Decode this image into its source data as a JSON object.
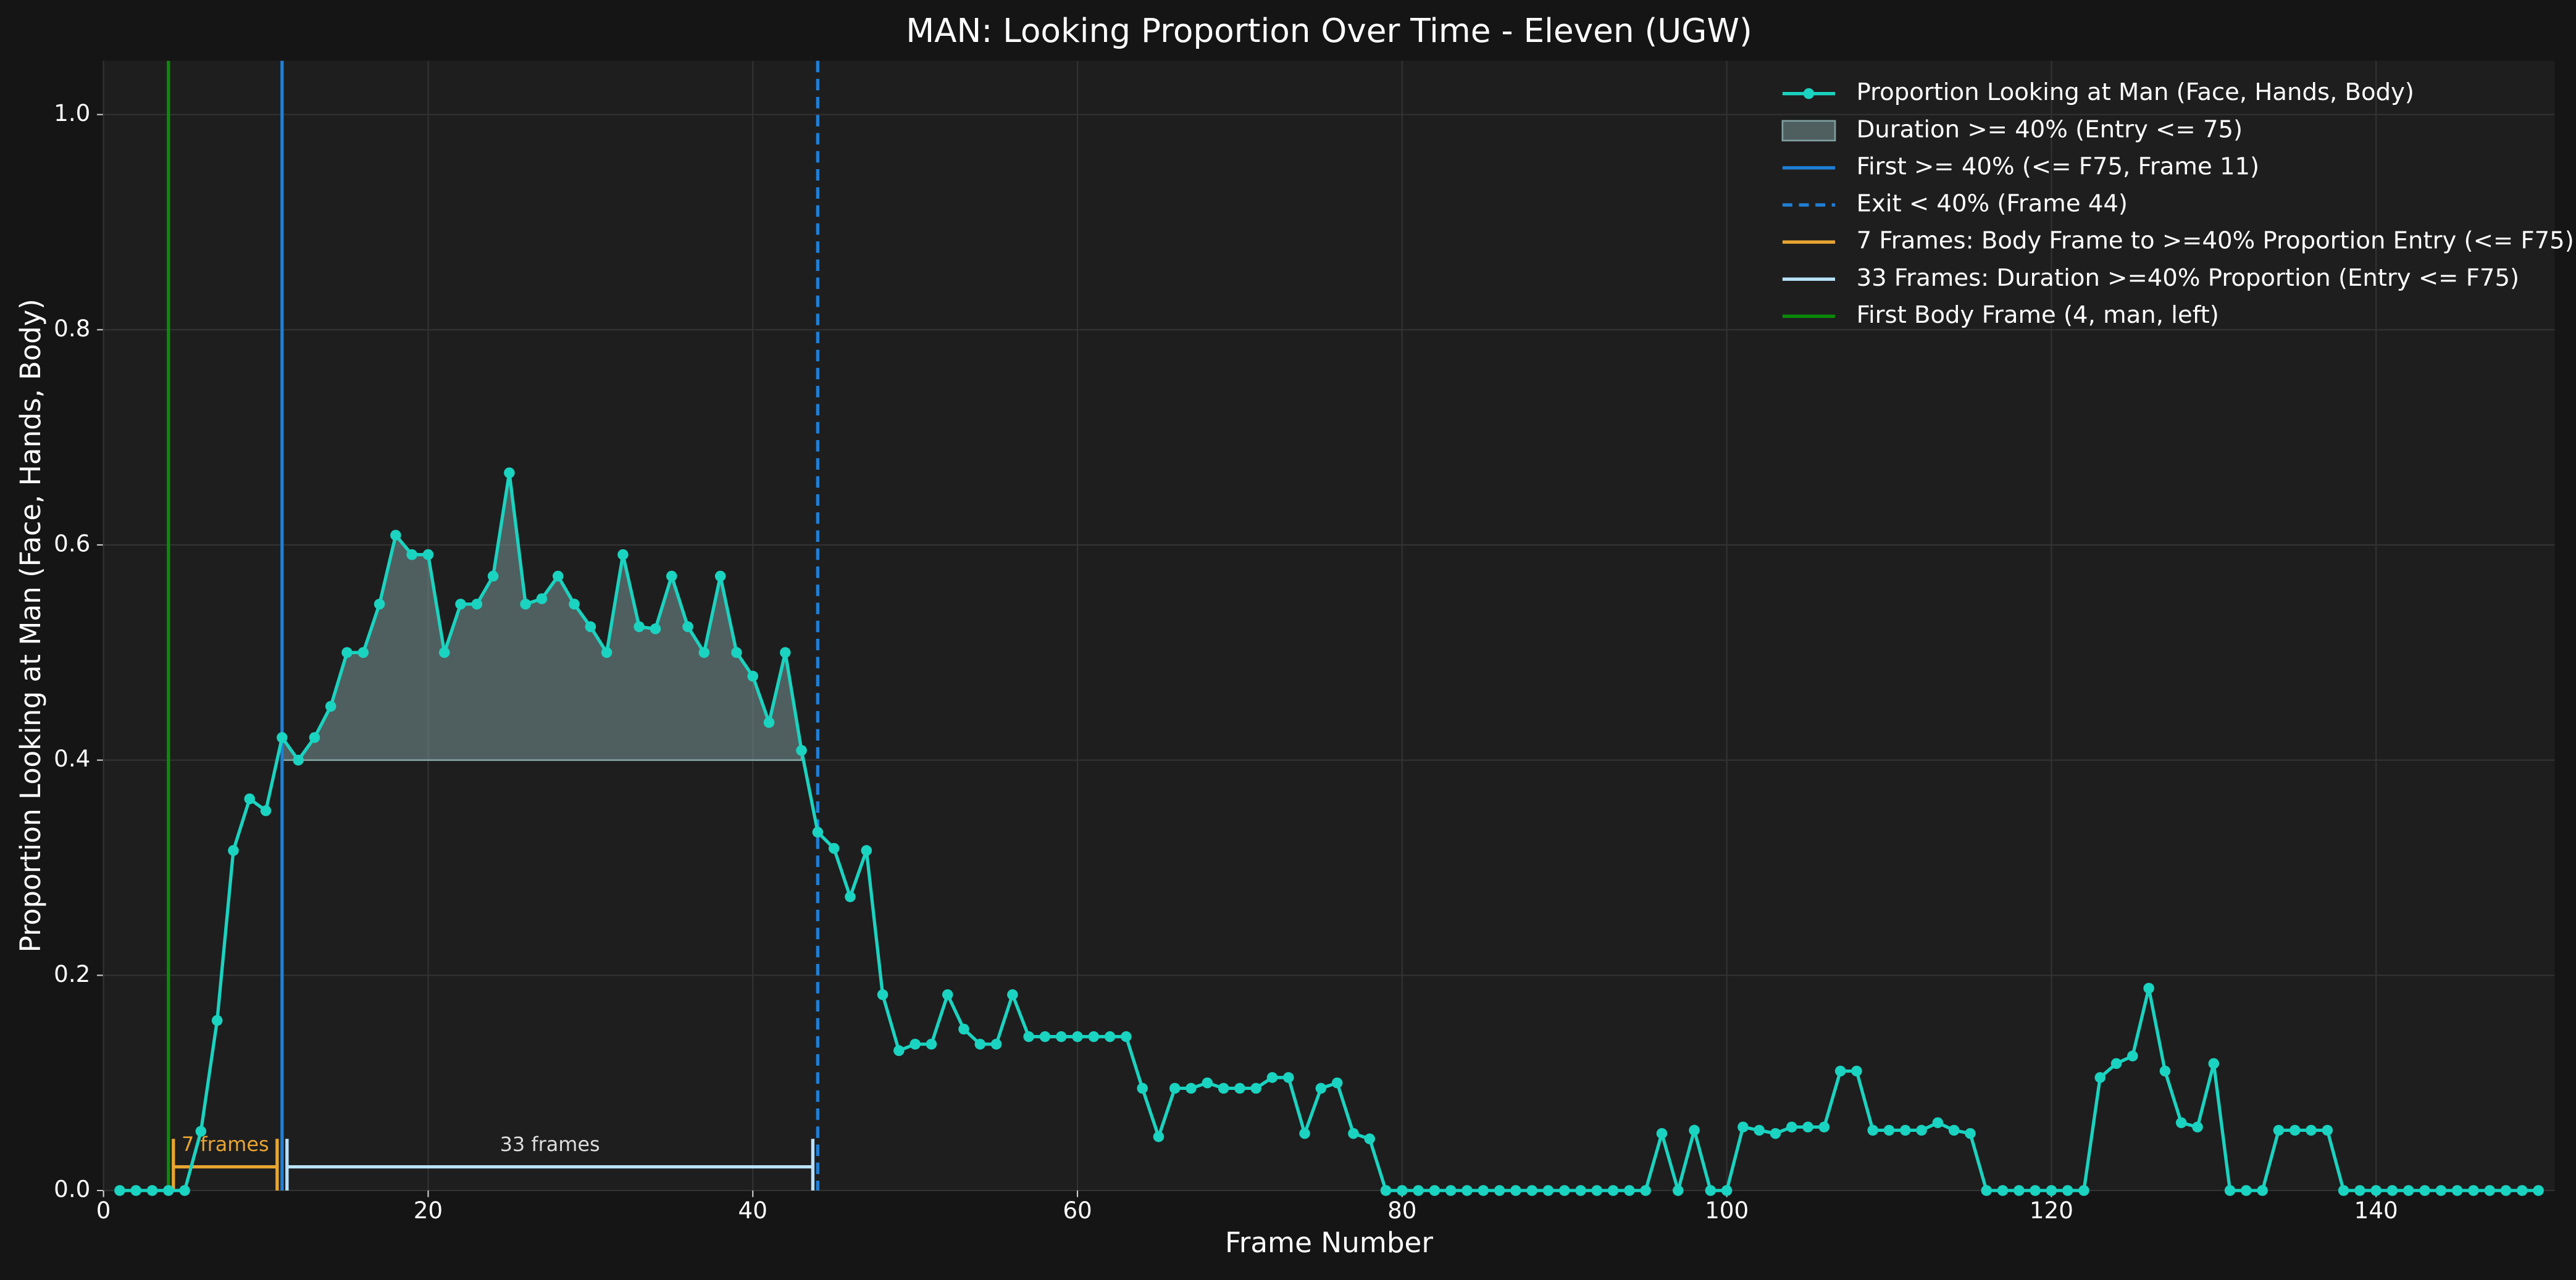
{
  "chart_data": {
    "type": "line",
    "title": "MAN: Looking Proportion Over Time - Eleven (UGW)",
    "xlabel": "Frame Number",
    "ylabel": "Proportion Looking at Man (Face, Hands, Body)",
    "x": [
      1,
      2,
      3,
      4,
      5,
      6,
      7,
      8,
      9,
      10,
      11,
      12,
      13,
      14,
      15,
      16,
      17,
      18,
      19,
      20,
      21,
      22,
      23,
      24,
      25,
      26,
      27,
      28,
      29,
      30,
      31,
      32,
      33,
      34,
      35,
      36,
      37,
      38,
      39,
      40,
      41,
      42,
      43,
      44,
      45,
      46,
      47,
      48,
      49,
      50,
      51,
      52,
      53,
      54,
      55,
      56,
      57,
      58,
      59,
      60,
      61,
      62,
      63,
      64,
      65,
      66,
      67,
      68,
      69,
      70,
      71,
      72,
      73,
      74,
      75,
      76,
      77,
      78,
      79,
      80,
      81,
      82,
      83,
      84,
      85,
      86,
      87,
      88,
      89,
      90,
      91,
      92,
      93,
      94,
      95,
      96,
      97,
      98,
      99,
      100,
      101,
      102,
      103,
      104,
      105,
      106,
      107,
      108,
      109,
      110,
      111,
      112,
      113,
      114,
      115,
      116,
      117,
      118,
      119,
      120,
      121,
      122,
      123,
      124,
      125,
      126,
      127,
      128,
      129,
      130,
      131,
      132,
      133,
      134,
      135,
      136,
      137,
      138,
      139,
      140,
      141,
      142,
      143,
      144,
      145,
      146,
      147,
      148,
      149,
      150
    ],
    "series": [
      {
        "name": "Proportion Looking at Man (Face, Hands, Body)",
        "color": "#1ad3c0",
        "values": [
          0,
          0,
          0,
          0,
          0,
          0.055,
          0.158,
          0.316,
          0.364,
          0.353,
          0.421,
          0.4,
          0.421,
          0.45,
          0.5,
          0.5,
          0.545,
          0.609,
          0.591,
          0.591,
          0.5,
          0.545,
          0.545,
          0.571,
          0.667,
          0.545,
          0.55,
          0.571,
          0.545,
          0.524,
          0.5,
          0.591,
          0.524,
          0.522,
          0.571,
          0.524,
          0.5,
          0.571,
          0.5,
          0.478,
          0.435,
          0.5,
          0.409,
          0.333,
          0.318,
          0.273,
          0.316,
          0.182,
          0.13,
          0.136,
          0.136,
          0.182,
          0.15,
          0.136,
          0.136,
          0.182,
          0.143,
          0.143,
          0.143,
          0.143,
          0.143,
          0.143,
          0.143,
          0.095,
          0.05,
          0.095,
          0.095,
          0.1,
          0.095,
          0.095,
          0.095,
          0.105,
          0.105,
          0.053,
          0.095,
          0.1,
          0.053,
          0.048,
          0,
          0,
          0,
          0,
          0,
          0,
          0,
          0,
          0,
          0,
          0,
          0,
          0,
          0,
          0,
          0,
          0,
          0.053,
          0,
          0.056,
          0,
          0,
          0.059,
          0.056,
          0.053,
          0.059,
          0.059,
          0.059,
          0.111,
          0.111,
          0.056,
          0.056,
          0.056,
          0.056,
          0.063,
          0.056,
          0.053,
          0,
          0,
          0,
          0,
          0,
          0,
          0,
          0.105,
          0.118,
          0.125,
          0.188,
          0.111,
          0.063,
          0.059,
          0.118,
          0,
          0,
          0,
          0.056,
          0.056,
          0.056,
          0.056,
          0,
          0,
          0,
          0,
          0,
          0,
          0,
          0,
          0,
          0,
          0,
          0,
          0
        ]
      }
    ],
    "fill": {
      "name": "Duration >= 40% (Entry <= 75)",
      "from": 0.4,
      "color": "#7f9fa0"
    },
    "overlays": [
      {
        "kind": "vline",
        "name": "First >= 40% (<= F75, Frame 11)",
        "x": 11,
        "color": "#1f7fd6",
        "style": "solid"
      },
      {
        "kind": "vline",
        "name": "Exit < 40% (Frame 44)",
        "x": 44,
        "color": "#1f7fd6",
        "style": "dashed"
      },
      {
        "kind": "span",
        "name": "7 Frames: Body Frame to >=40% Proportion Entry (<= F75)",
        "label": "7 frames",
        "x": [
          4,
          11
        ],
        "color": "#e8a531"
      },
      {
        "kind": "span",
        "name": "33 Frames: Duration >=40% Proportion (Entry <= F75)",
        "label": "33 frames",
        "x": [
          11,
          44
        ],
        "color": "#b8e2ff"
      },
      {
        "kind": "vline",
        "name": "First Body Frame (4, man, left)",
        "x": 4,
        "color": "#0a8a0a",
        "style": "solid"
      }
    ],
    "xlim": [
      0,
      151
    ],
    "ylim": [
      0,
      1.05
    ],
    "xticks": [
      0,
      20,
      40,
      60,
      80,
      100,
      120,
      140
    ],
    "yticks": [
      {
        "value": 0,
        "label": "0.0"
      },
      0.2,
      0.4,
      0.6,
      0.8,
      {
        "value": 1,
        "label": "1.0"
      }
    ],
    "grid": true,
    "legend": "upper right"
  }
}
